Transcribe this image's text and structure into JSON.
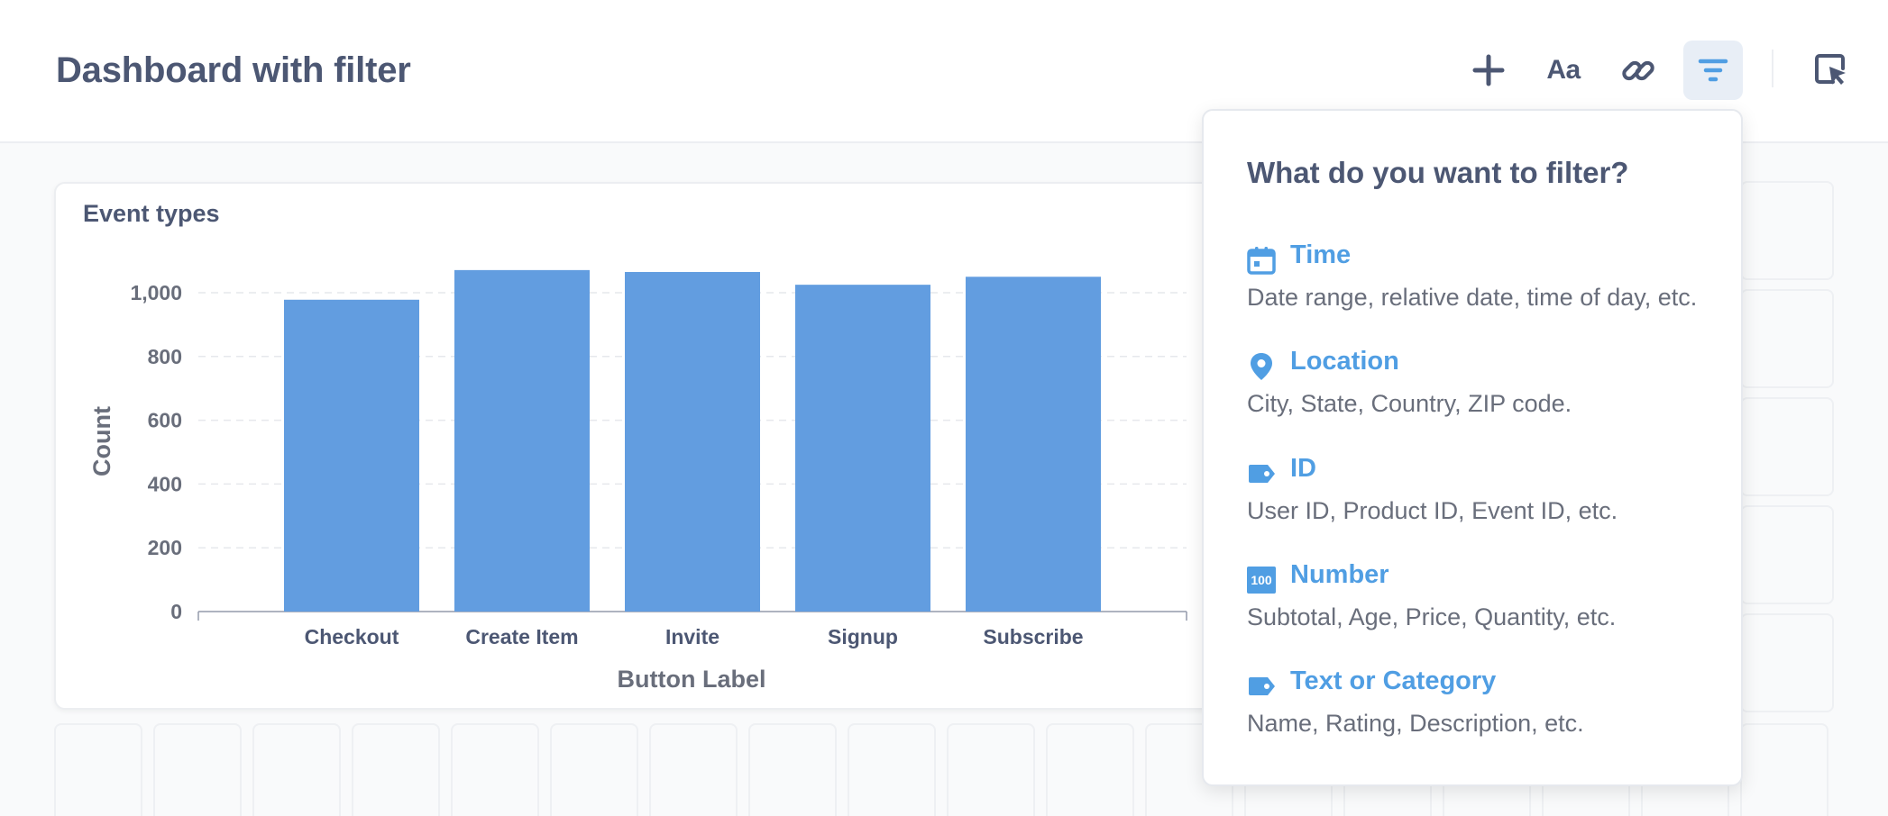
{
  "header": {
    "title": "Dashboard with filter",
    "toolbar": {
      "add_icon": "plus-icon",
      "text_label": "Aa",
      "link_icon": "link-icon",
      "filter_icon": "filter-icon",
      "action_icon": "cursor-click-icon"
    }
  },
  "card": {
    "title": "Event types"
  },
  "chart_data": {
    "type": "bar",
    "title": "Event types",
    "categories": [
      "Checkout",
      "Create Item",
      "Invite",
      "Signup",
      "Subscribe"
    ],
    "values": [
      978,
      1071,
      1065,
      1025,
      1050
    ],
    "xlabel": "Button Label",
    "ylabel": "Count",
    "ylim": [
      0,
      1000
    ],
    "yticks": [
      "0",
      "200",
      "400",
      "600",
      "800",
      "1,000"
    ],
    "grid": true,
    "color": "#629de0"
  },
  "popover": {
    "title": "What do you want to filter?",
    "options": [
      {
        "label": "Time",
        "description": "Date range, relative date, time of day, etc.",
        "icon": "calendar-icon"
      },
      {
        "label": "Location",
        "description": "City, State, Country, ZIP code.",
        "icon": "pin-icon"
      },
      {
        "label": "ID",
        "description": "User ID, Product ID, Event ID, etc.",
        "icon": "tag-icon"
      },
      {
        "label": "Number",
        "description": "Subtotal, Age, Price, Quantity, etc.",
        "icon": "number-icon",
        "icon_text": "100"
      },
      {
        "label": "Text or Category",
        "description": "Name, Rating, Description, etc.",
        "icon": "tag-icon"
      }
    ]
  },
  "colors": {
    "accent": "#509ee3",
    "bar": "#629de0",
    "text": "#4c5773"
  }
}
